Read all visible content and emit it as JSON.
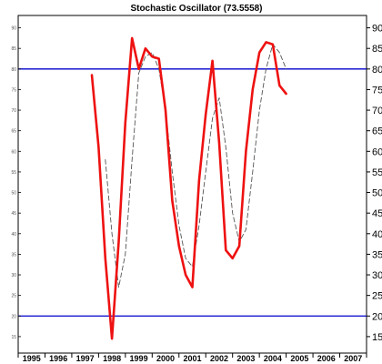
{
  "chart_data": {
    "type": "line",
    "title": "Stochastic Oscillator (73.5558)",
    "xlim": [
      1995,
      2008
    ],
    "ylim": [
      11,
      93
    ],
    "grid": false,
    "y_ticks": [
      15,
      20,
      25,
      30,
      35,
      40,
      45,
      50,
      55,
      60,
      65,
      70,
      75,
      80,
      85,
      90
    ],
    "x_ticks": [
      1995,
      1996,
      1997,
      1998,
      1999,
      2000,
      2001,
      2002,
      2003,
      2004,
      2005,
      2006,
      2007
    ],
    "reference_lines": [
      {
        "value": 80,
        "color": "#0000cc"
      },
      {
        "value": 20,
        "color": "#0000cc"
      }
    ],
    "series": [
      {
        "color": "#ee1111",
        "style": "solid",
        "x": [
          1997.75,
          1998.0,
          1998.25,
          1998.5,
          1998.75,
          1999.0,
          1999.25,
          1999.5,
          1999.75,
          2000.0,
          2000.25,
          2000.5,
          2000.75,
          2001.0,
          2001.25,
          2001.5,
          2001.75,
          2002.0,
          2002.25,
          2002.5,
          2002.75,
          2003.0,
          2003.25,
          2003.5,
          2003.75,
          2004.0,
          2004.25,
          2004.5,
          2004.75,
          2005.0
        ],
        "values": [
          78.5,
          61,
          34,
          14.5,
          38,
          67,
          87.5,
          80,
          85,
          83,
          82.5,
          70,
          48,
          37,
          30,
          27,
          53,
          69,
          82,
          62,
          36,
          34,
          37,
          60,
          75,
          84,
          86.5,
          86,
          76,
          74
        ]
      },
      {
        "color": "#555555",
        "style": "dashed",
        "x": [
          1998.25,
          1998.5,
          1998.75,
          1999.0,
          1999.25,
          1999.5,
          1999.75,
          2000.0,
          2000.25,
          2000.5,
          2000.75,
          2001.0,
          2001.25,
          2001.5,
          2001.75,
          2002.0,
          2002.25,
          2002.5,
          2002.75,
          2003.0,
          2003.25,
          2003.5,
          2003.75,
          2004.0,
          2004.25,
          2004.5,
          2004.75,
          2005.0
        ],
        "values": [
          58,
          40,
          27,
          35,
          58,
          79,
          83,
          84,
          80,
          70,
          55,
          42,
          34,
          32,
          42,
          55,
          68,
          73,
          61,
          45,
          38,
          41,
          55,
          70,
          80,
          86,
          84,
          80
        ]
      }
    ]
  }
}
